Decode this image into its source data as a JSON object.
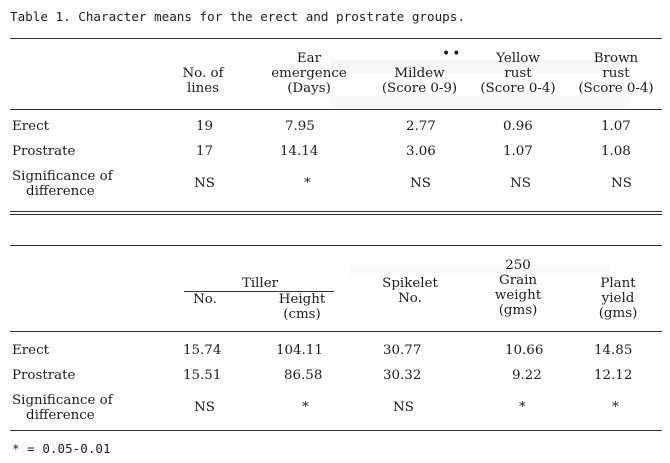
{
  "caption": "Table 1.  Character means for the erect and prostrate groups.",
  "table1": {
    "headers": {
      "lines": [
        "No. of",
        "lines"
      ],
      "ear": [
        "Ear",
        "emergence",
        "(Days)"
      ],
      "mildew": [
        "Mildew",
        "(Score 0-9)"
      ],
      "yellow": [
        "Yellow",
        "rust",
        "(Score 0-4)"
      ],
      "brown": [
        "Brown",
        "rust",
        "(Score 0-4)"
      ]
    },
    "rows": [
      {
        "label": "Erect",
        "values": [
          "19",
          "7.95",
          "2.77",
          "0.96",
          "1.07"
        ]
      },
      {
        "label": "Prostrate",
        "values": [
          "17",
          "14.14",
          "3.06",
          "1.07",
          "1.08"
        ]
      }
    ],
    "significance": {
      "label": [
        "Significance of",
        "difference"
      ],
      "values": [
        "NS",
        "*",
        "NS",
        "NS",
        "NS"
      ]
    }
  },
  "table2": {
    "headers": {
      "tiller": "Tiller",
      "tiller_no": "No.",
      "tiller_height": [
        "Height",
        "(cms)"
      ],
      "spikelet": [
        "Spikelet",
        "No."
      ],
      "grain": [
        "250",
        "Grain",
        "weight",
        "(gms)"
      ],
      "plant": [
        "Plant",
        "yield",
        "(gms)"
      ]
    },
    "rows": [
      {
        "label": "Erect",
        "values": [
          "15.74",
          "104.11",
          "30.77",
          "10.66",
          "14.85"
        ]
      },
      {
        "label": "Prostrate",
        "values": [
          "15.51",
          "86.58",
          "30.32",
          "9.22",
          "12.12"
        ]
      }
    ],
    "significance": {
      "label": [
        "Significance of",
        "difference"
      ],
      "values": [
        "NS",
        "*",
        "NS",
        "*",
        "*"
      ]
    }
  },
  "footnote": "* = 0.05-0.01"
}
